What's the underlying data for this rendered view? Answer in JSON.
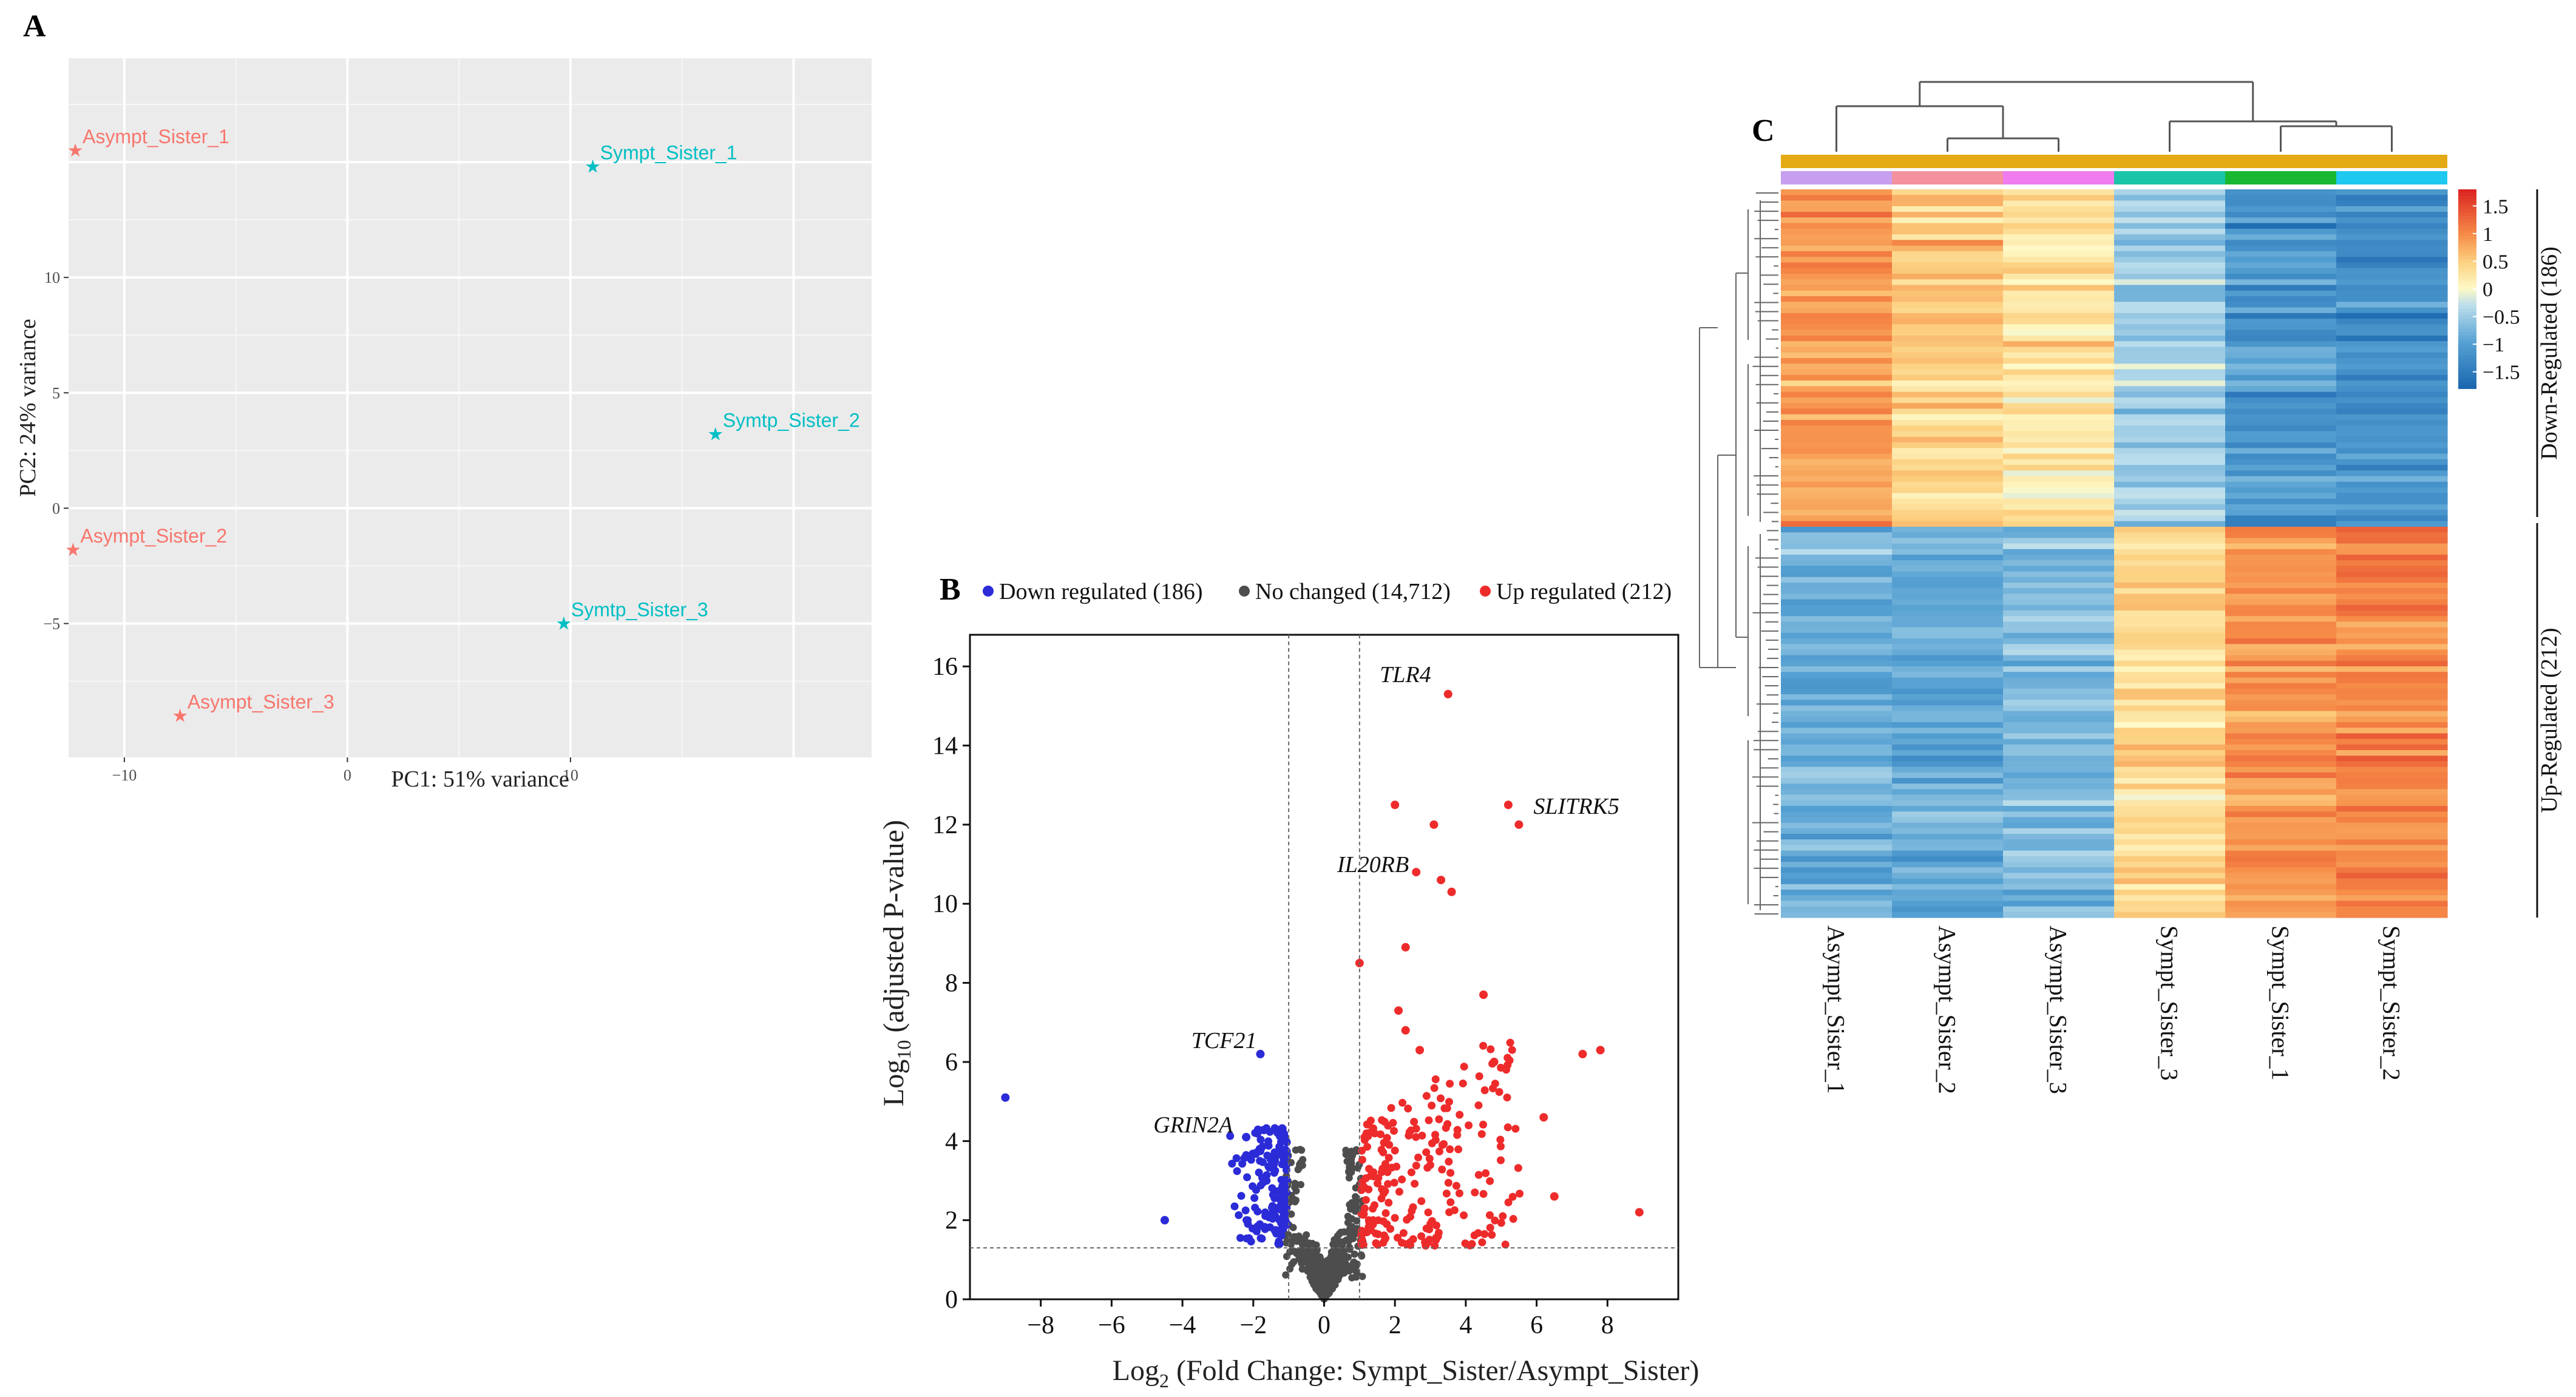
{
  "panels": {
    "a": "A",
    "b": "B",
    "c": "C"
  },
  "colors": {
    "asympt": "#f8766d",
    "sympt": "#00bfc4",
    "pca_bg": "#ebebeb",
    "down": "#2b2bd8",
    "nochange": "#4d4d4d",
    "up": "#ee2b2b",
    "gold": "#e3aa14"
  },
  "chart_data": [
    {
      "type": "scatter",
      "id": "pca",
      "xlabel": "PC1: 51% variance",
      "ylabel": "PC2: 24% variance",
      "xlim": [
        -12.5,
        23.5
      ],
      "ylim": [
        -10.8,
        19.5
      ],
      "xticks": [
        -10,
        0,
        10
      ],
      "yticks": [
        -5,
        0,
        5,
        10
      ],
      "grid": true,
      "series": [
        {
          "name": "Asympt",
          "points": [
            {
              "label": "Asympt_Sister_1",
              "x": -12.2,
              "y": 15.5
            },
            {
              "label": "Asympt_Sister_2",
              "x": -12.3,
              "y": -1.8
            },
            {
              "label": "Asympt_Sister_3",
              "x": -7.5,
              "y": -9.0
            }
          ]
        },
        {
          "name": "Sympt",
          "points": [
            {
              "label": "Sympt_Sister_1",
              "x": 11.0,
              "y": 14.8
            },
            {
              "label": "Symtp_Sister_2",
              "x": 16.5,
              "y": 3.2
            },
            {
              "label": "Symtp_Sister_3",
              "x": 9.7,
              "y": -5.0
            }
          ]
        }
      ]
    },
    {
      "type": "scatter",
      "id": "volcano",
      "xlabel": "Log",
      "xlabel_sub": "2",
      "xlabel_rest": " (Fold Change: Sympt_Sister/Asympt_Sister)",
      "ylabel": "Log",
      "ylabel_sub": "10",
      "ylabel_rest": " (adjusted P-value)",
      "xlim": [
        -10,
        10
      ],
      "ylim": [
        0,
        16.8
      ],
      "xticks": [
        -8,
        -6,
        -4,
        -2,
        0,
        2,
        4,
        6,
        8
      ],
      "yticks": [
        0,
        2,
        4,
        6,
        8,
        10,
        12,
        14,
        16
      ],
      "thresholds": {
        "x": [
          -1,
          1
        ],
        "y": 1.3
      },
      "legend": [
        {
          "label": "Down regulated (186)",
          "color": "#2b2bd8"
        },
        {
          "label": "No changed (14,712)",
          "color": "#4d4d4d"
        },
        {
          "label": "Up regulated (212)",
          "color": "#ee2b2b"
        }
      ],
      "genes": [
        {
          "name": "TLR4",
          "x": 3.5,
          "y": 15.3
        },
        {
          "name": "SLITRK5",
          "x": 5.5,
          "y": 12.0
        },
        {
          "name": "IL20RB",
          "x": 2.6,
          "y": 10.8
        },
        {
          "name": "TCF21",
          "x": -1.8,
          "y": 6.2
        },
        {
          "name": "GRIN2A",
          "x": -2.2,
          "y": 4.1
        }
      ],
      "highlight_points": {
        "down": [
          [
            -9,
            5.1
          ],
          [
            -4.5,
            2.0
          ],
          [
            -1.8,
            6.2
          ],
          [
            -2.2,
            4.1
          ]
        ],
        "up": [
          [
            3.5,
            15.3
          ],
          [
            5.2,
            12.5
          ],
          [
            5.5,
            12.0
          ],
          [
            2.6,
            10.8
          ],
          [
            2.0,
            12.5
          ],
          [
            3.1,
            12.0
          ],
          [
            3.3,
            10.6
          ],
          [
            3.6,
            10.3
          ],
          [
            2.3,
            8.9
          ],
          [
            1.0,
            8.5
          ],
          [
            4.5,
            7.7
          ],
          [
            2.1,
            7.3
          ],
          [
            2.3,
            6.8
          ],
          [
            7.3,
            6.2
          ],
          [
            7.8,
            6.3
          ],
          [
            4.8,
            6.0
          ],
          [
            6.2,
            4.6
          ],
          [
            8.9,
            2.2
          ],
          [
            6.5,
            2.6
          ],
          [
            2.7,
            6.3
          ]
        ]
      }
    },
    {
      "type": "heatmap",
      "id": "heatmap",
      "columns": [
        "Asympt_Sister_1",
        "Asympt_Sister_2",
        "Asympt_Sister_3",
        "Sympt_Sister_3",
        "Sympt_Sister_1",
        "Sympt_Sister_2"
      ],
      "column_colors": [
        "#c79fef",
        "#f3919f",
        "#ef7bef",
        "#1bc5a8",
        "#1ab832",
        "#1fc8ef"
      ],
      "row_groups": [
        {
          "label": "Down-Regulated (186)",
          "count": 186
        },
        {
          "label": "Up-Regulated (212)",
          "count": 212
        }
      ],
      "color_scale": {
        "min": -1.8,
        "max": 1.8,
        "ticks": [
          "1.5",
          "1",
          "0.5",
          "0",
          "−0.5",
          "−1",
          "−1.5"
        ],
        "tick_values": [
          1.5,
          1,
          0.5,
          0,
          -0.5,
          -1,
          -1.5
        ]
      },
      "group_means": [
        [
          0.9,
          0.5,
          0.3,
          -0.5,
          -1.1,
          -1.2
        ],
        [
          -0.8,
          -0.9,
          -0.7,
          0.4,
          0.9,
          1.0
        ]
      ]
    }
  ]
}
